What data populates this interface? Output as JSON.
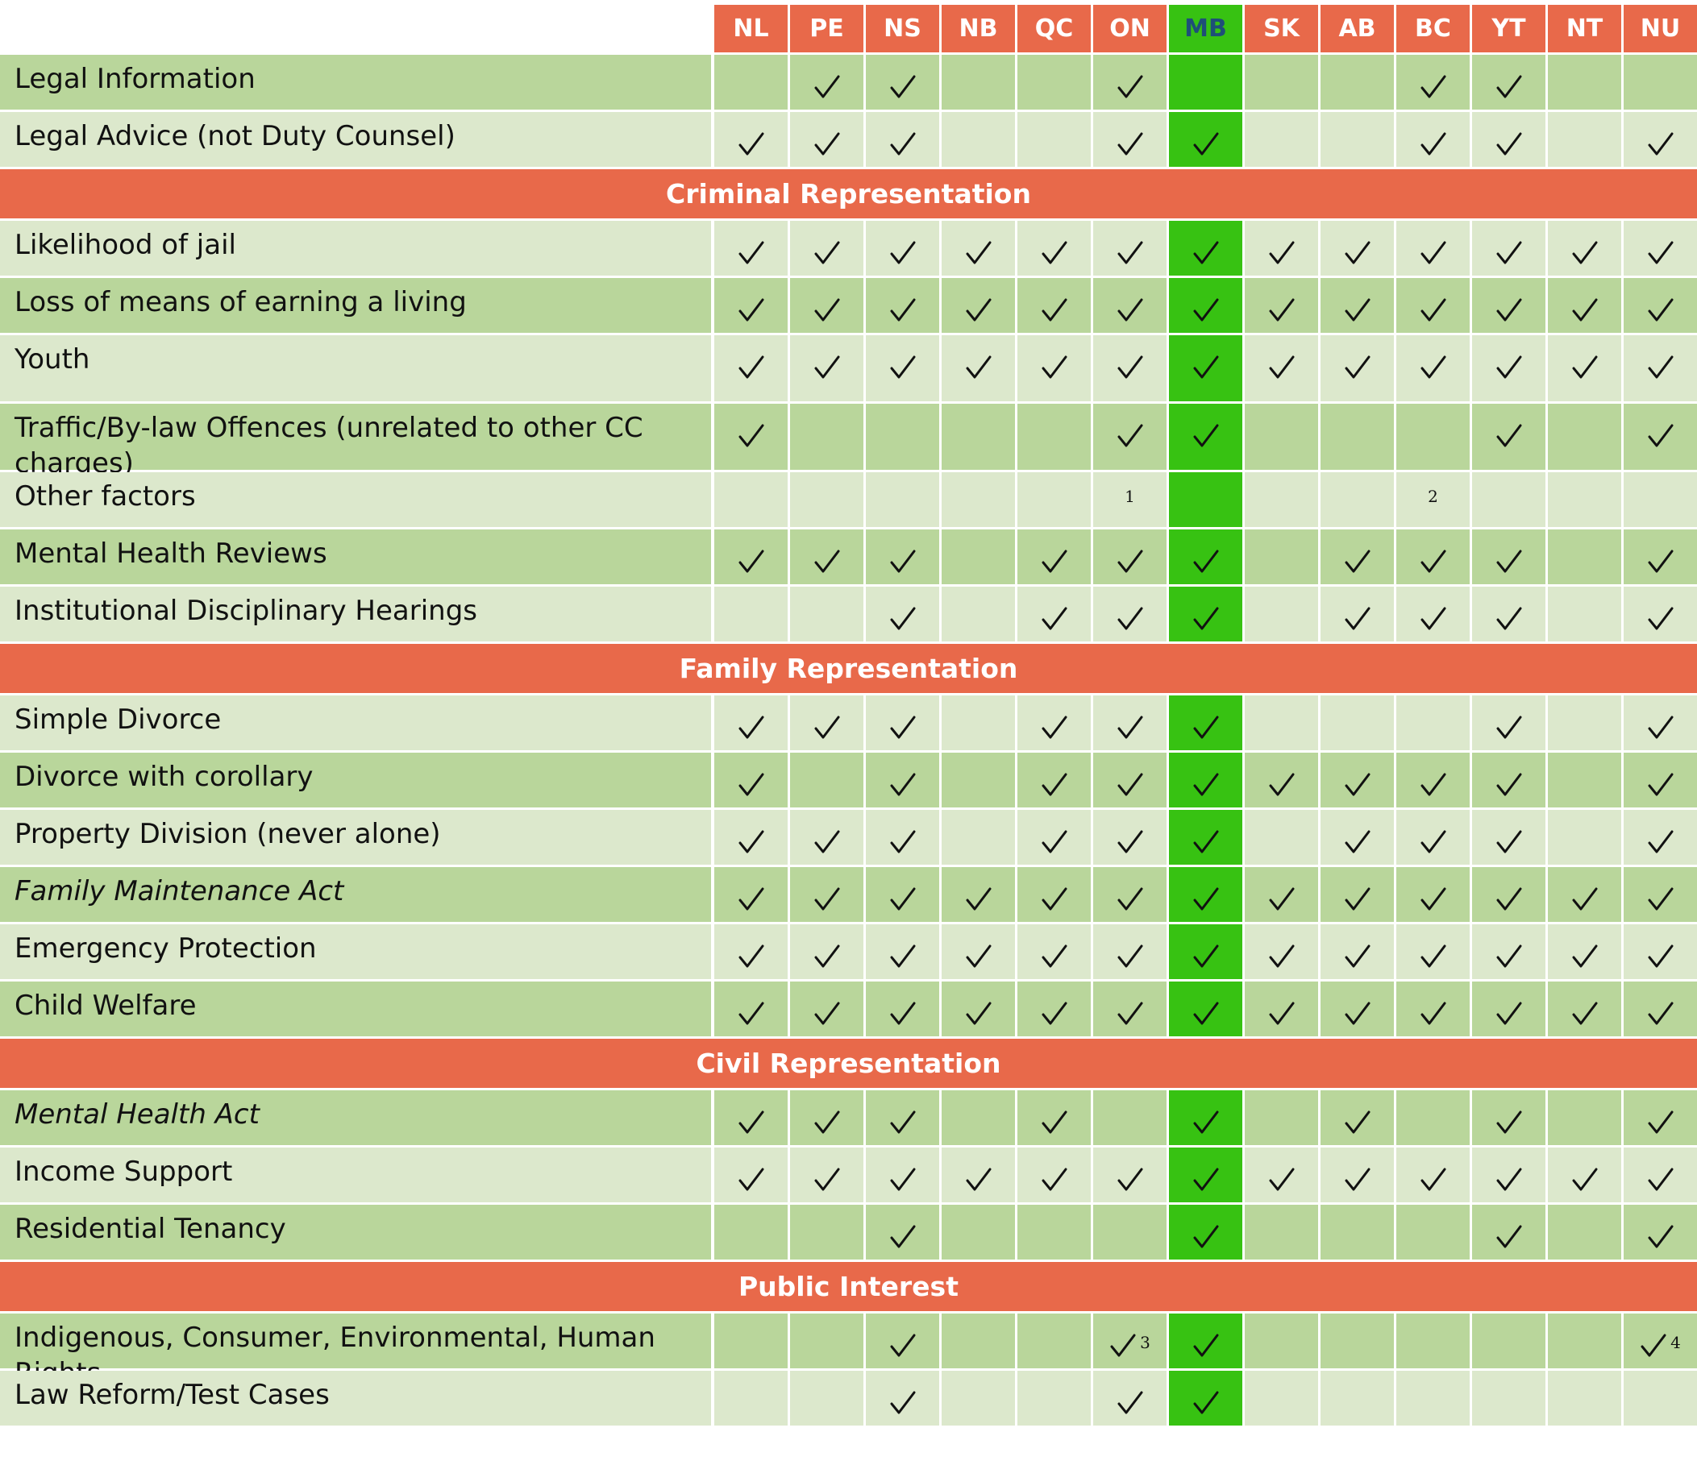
{
  "columns": [
    "NL",
    "PE",
    "NS",
    "NB",
    "QC",
    "ON",
    "MB",
    "SK",
    "AB",
    "BC",
    "YT",
    "NT",
    "NU"
  ],
  "highlight_column": "MB",
  "colors": {
    "header": "#e8694a",
    "highlight": "#37c212",
    "row_dark": "#b9d69b",
    "row_light": "#dce8cc",
    "highlight_text": "#1e4f78"
  },
  "rows": [
    {
      "type": "row",
      "label": "Legal Information",
      "shade": 0,
      "cells": [
        "",
        "check",
        "check",
        "",
        "",
        "check",
        "",
        "",
        "",
        "check",
        "check",
        "",
        ""
      ]
    },
    {
      "type": "row",
      "label": "Legal Advice (not Duty Counsel)",
      "shade": 1,
      "cells": [
        "check",
        "check",
        "check",
        "",
        "",
        "check",
        "check",
        "",
        "",
        "check",
        "check",
        "",
        "check"
      ]
    },
    {
      "type": "section",
      "label": "Criminal Representation"
    },
    {
      "type": "row",
      "label": "Likelihood of jail",
      "shade": 1,
      "cells": [
        "check",
        "check",
        "check",
        "check",
        "check",
        "check",
        "check",
        "check",
        "check",
        "check",
        "check",
        "check",
        "check"
      ]
    },
    {
      "type": "row",
      "label": "Loss of means of earning a living",
      "shade": 0,
      "cells": [
        "check",
        "check",
        "check",
        "check",
        "check",
        "check",
        "check",
        "check",
        "check",
        "check",
        "check",
        "check",
        "check"
      ]
    },
    {
      "type": "row",
      "label": "Youth",
      "shade": 1,
      "tall": true,
      "cells": [
        "check",
        "check",
        "check",
        "check",
        "check",
        "check",
        "check",
        "check",
        "check",
        "check",
        "check",
        "check",
        "check"
      ]
    },
    {
      "type": "row",
      "label": "Traffic/By-law Offences  (unrelated to other CC charges)",
      "shade": 0,
      "tall": true,
      "cells": [
        "check",
        "",
        "",
        "",
        "",
        "check",
        "check",
        "",
        "",
        "",
        "check",
        "",
        "check"
      ]
    },
    {
      "type": "row",
      "label": "Other factors",
      "shade": 1,
      "cells": [
        "",
        "",
        "",
        "",
        "",
        "1",
        "",
        "",
        "",
        "2",
        "",
        "",
        ""
      ]
    },
    {
      "type": "row",
      "label": "Mental Health Reviews",
      "shade": 0,
      "cells": [
        "check",
        "check",
        "check",
        "",
        "check",
        "check",
        "check",
        "",
        "check",
        "check",
        "check",
        "",
        "check"
      ]
    },
    {
      "type": "row",
      "label": "Institutional Disciplinary Hearings",
      "shade": 1,
      "cells": [
        "",
        "",
        "check",
        "",
        "check",
        "check",
        "check",
        "",
        "check",
        "check",
        "check",
        "",
        "check"
      ]
    },
    {
      "type": "section",
      "label": "Family Representation"
    },
    {
      "type": "row",
      "label": "Simple Divorce",
      "shade": 1,
      "cells": [
        "check",
        "check",
        "check",
        "",
        "check",
        "check",
        "check",
        "",
        "",
        "",
        "check",
        "",
        "check"
      ]
    },
    {
      "type": "row",
      "label": "Divorce with corollary",
      "shade": 0,
      "cells": [
        "check",
        "",
        "check",
        "",
        "check",
        "check",
        "check",
        "check",
        "check",
        "check",
        "check",
        "",
        "check"
      ]
    },
    {
      "type": "row",
      "label": "Property Division (never alone)",
      "shade": 1,
      "cells": [
        "check",
        "check",
        "check",
        "",
        "check",
        "check",
        "check",
        "",
        "check",
        "check",
        "check",
        "",
        "check"
      ]
    },
    {
      "type": "row",
      "label": "Family Maintenance Act",
      "shade": 0,
      "italic": true,
      "cells": [
        "check",
        "check",
        "check",
        "check",
        "check",
        "check",
        "check",
        "check",
        "check",
        "check",
        "check",
        "check",
        "check"
      ]
    },
    {
      "type": "row",
      "label": "Emergency Protection",
      "shade": 1,
      "cells": [
        "check",
        "check",
        "check",
        "check",
        "check",
        "check",
        "check",
        "check",
        "check",
        "check",
        "check",
        "check",
        "check"
      ]
    },
    {
      "type": "row",
      "label": "Child Welfare",
      "shade": 0,
      "cells": [
        "check",
        "check",
        "check",
        "check",
        "check",
        "check",
        "check",
        "check",
        "check",
        "check",
        "check",
        "check",
        "check"
      ]
    },
    {
      "type": "section",
      "label": "Civil Representation"
    },
    {
      "type": "row",
      "label": "Mental Health Act",
      "shade": 0,
      "italic": true,
      "cells": [
        "check",
        "check",
        "check",
        "",
        "check",
        "",
        "check",
        "",
        "check",
        "",
        "check",
        "",
        "check"
      ]
    },
    {
      "type": "row",
      "label": "Income Support",
      "shade": 1,
      "cells": [
        "check",
        "check",
        "check",
        "check",
        "check",
        "check",
        "check",
        "check",
        "check",
        "check",
        "check",
        "check",
        "check"
      ]
    },
    {
      "type": "row",
      "label": "Residential Tenancy",
      "shade": 0,
      "cells": [
        "",
        "",
        "check",
        "",
        "",
        "",
        "check",
        "",
        "",
        "",
        "check",
        "",
        "check"
      ]
    },
    {
      "type": "section",
      "label": "Public Interest"
    },
    {
      "type": "row",
      "label": "Indigenous, Consumer, Environmental, Human Rights",
      "shade": 0,
      "cells": [
        "",
        "",
        "check",
        "",
        "",
        "check:3",
        "check",
        "",
        "",
        "",
        "",
        "",
        "check:4"
      ]
    },
    {
      "type": "row",
      "label": "Law Reform/Test Cases",
      "shade": 1,
      "cells": [
        "",
        "",
        "check",
        "",
        "",
        "check",
        "check",
        "",
        "",
        "",
        "",
        "",
        ""
      ]
    }
  ]
}
